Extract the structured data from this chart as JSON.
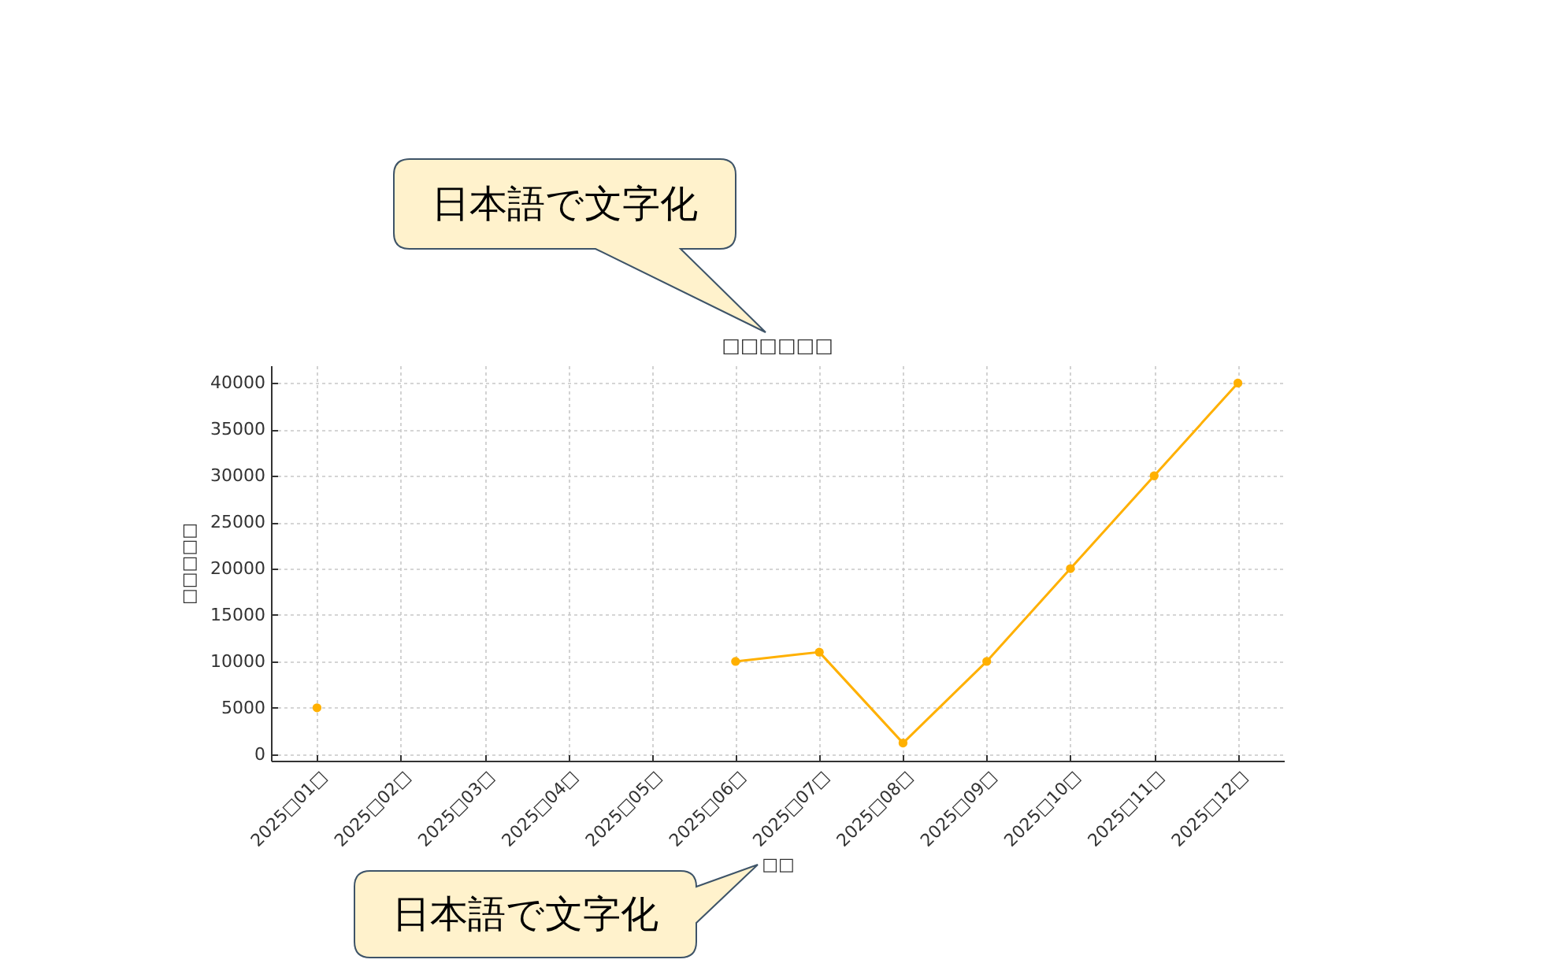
{
  "chart_data": {
    "type": "line",
    "title": "□□□□□□",
    "xlabel": "□□",
    "ylabel": "□□□□□",
    "categories": [
      "2025□01□",
      "2025□02□",
      "2025□03□",
      "2025□04□",
      "2025□05□",
      "2025□06□",
      "2025□07□",
      "2025□08□",
      "2025□09□",
      "2025□10□",
      "2025□11□",
      "2025□12□"
    ],
    "values": [
      5000,
      null,
      null,
      null,
      null,
      10000,
      11000,
      1200,
      10000,
      20000,
      30000,
      40000
    ],
    "color": "#ffb000",
    "marker": "circle",
    "grid": true,
    "ylim": [
      -700,
      41900
    ],
    "yticks": [
      0,
      5000,
      10000,
      15000,
      20000,
      25000,
      30000,
      35000,
      40000
    ],
    "annotations": [
      "日本語で文字化",
      "日本語で文字化"
    ]
  }
}
